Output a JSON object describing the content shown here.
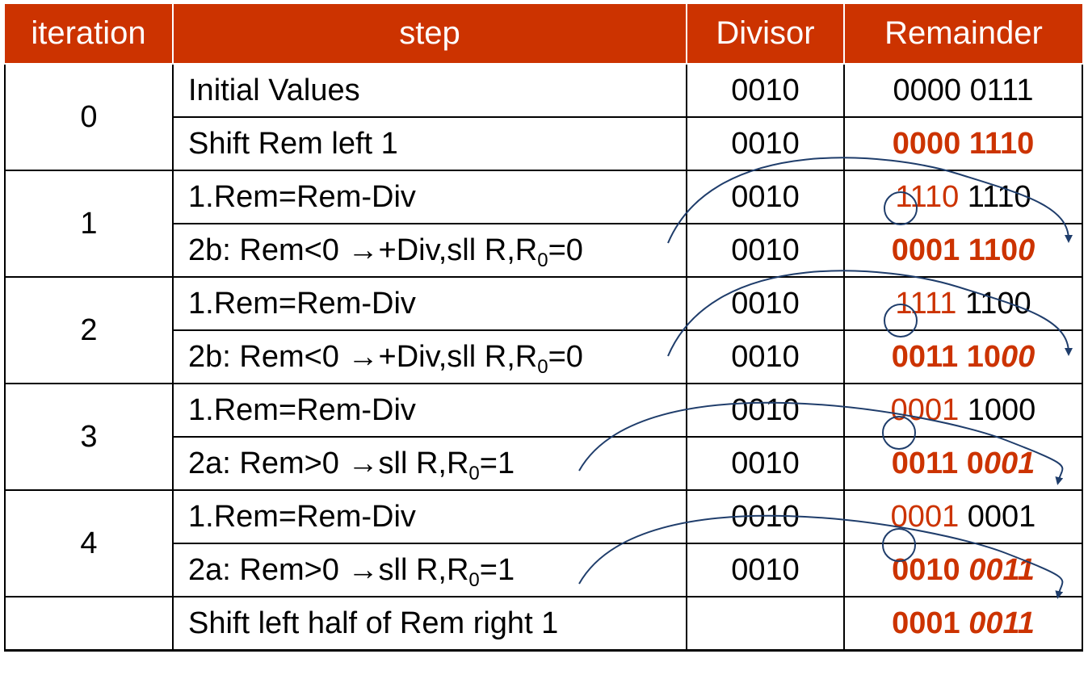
{
  "header": {
    "iteration": "iteration",
    "step": "step",
    "divisor": "Divisor",
    "remainder": "Remainder"
  },
  "groups": [
    {
      "iteration": "0",
      "rows": [
        {
          "step": "Initial Values",
          "divisor": "0010",
          "rem": [
            {
              "t": "0000 0111",
              "c": ""
            }
          ]
        },
        {
          "step": "Shift Rem left 1",
          "divisor": "0010",
          "rem": [
            {
              "t": "0000 1110",
              "c": "red bold"
            }
          ]
        }
      ]
    },
    {
      "iteration": "1",
      "rows": [
        {
          "step": "1.Rem=Rem-Div",
          "divisor": "0010",
          "rem": [
            {
              "t": "1110",
              "c": "red"
            },
            {
              "t": " 1110",
              "c": ""
            }
          ]
        },
        {
          "step_pre": "2b: Rem<0 →+Div,sll R,R",
          "step_sub": "0",
          "step_post": "=0",
          "divisor": "0010",
          "rem": [
            {
              "t": "0001 110",
              "c": "red bold"
            },
            {
              "t": "0",
              "c": "red bold it"
            }
          ]
        }
      ]
    },
    {
      "iteration": "2",
      "rows": [
        {
          "step": "1.Rem=Rem-Div",
          "divisor": "0010",
          "rem": [
            {
              "t": "1111",
              "c": "red"
            },
            {
              "t": " 1100",
              "c": ""
            }
          ]
        },
        {
          "step_pre": "2b: Rem<0 →+Div,sll R,R",
          "step_sub": "0",
          "step_post": "=0",
          "divisor": "0010",
          "rem": [
            {
              "t": "0011 10",
              "c": "red bold"
            },
            {
              "t": "00",
              "c": "red bold it"
            }
          ]
        }
      ]
    },
    {
      "iteration": "3",
      "rows": [
        {
          "step": "1.Rem=Rem-Div",
          "divisor": "0010",
          "rem": [
            {
              "t": "0001",
              "c": "red"
            },
            {
              "t": " 1000",
              "c": ""
            }
          ]
        },
        {
          "step_pre": "2a: Rem>0 →sll R,R",
          "step_sub": "0",
          "step_post": "=1",
          "divisor": "0010",
          "rem": [
            {
              "t": "0011 0",
              "c": "red bold"
            },
            {
              "t": "001",
              "c": "red bold it"
            }
          ]
        }
      ]
    },
    {
      "iteration": "4",
      "rows": [
        {
          "step": "1.Rem=Rem-Div",
          "divisor": "0010",
          "rem": [
            {
              "t": "0001",
              "c": "red"
            },
            {
              "t": " 0001",
              "c": ""
            }
          ]
        },
        {
          "step_pre": "2a: Rem>0 →sll R,R",
          "step_sub": "0",
          "step_post": "=1",
          "divisor": "0010",
          "rem": [
            {
              "t": "0010 ",
              "c": "red bold"
            },
            {
              "t": "0011",
              "c": "red bold it"
            }
          ]
        }
      ]
    },
    {
      "iteration": "",
      "rows": [
        {
          "step": "Shift left half of Rem right 1",
          "divisor": "",
          "rem": [
            {
              "t": "0001 ",
              "c": "red bold"
            },
            {
              "t": "0011",
              "c": "red bold it"
            }
          ]
        }
      ]
    }
  ],
  "colors": {
    "header_bg": "#cc3300",
    "accent_text": "#cc3300",
    "arrow": "#1f3d6b"
  }
}
